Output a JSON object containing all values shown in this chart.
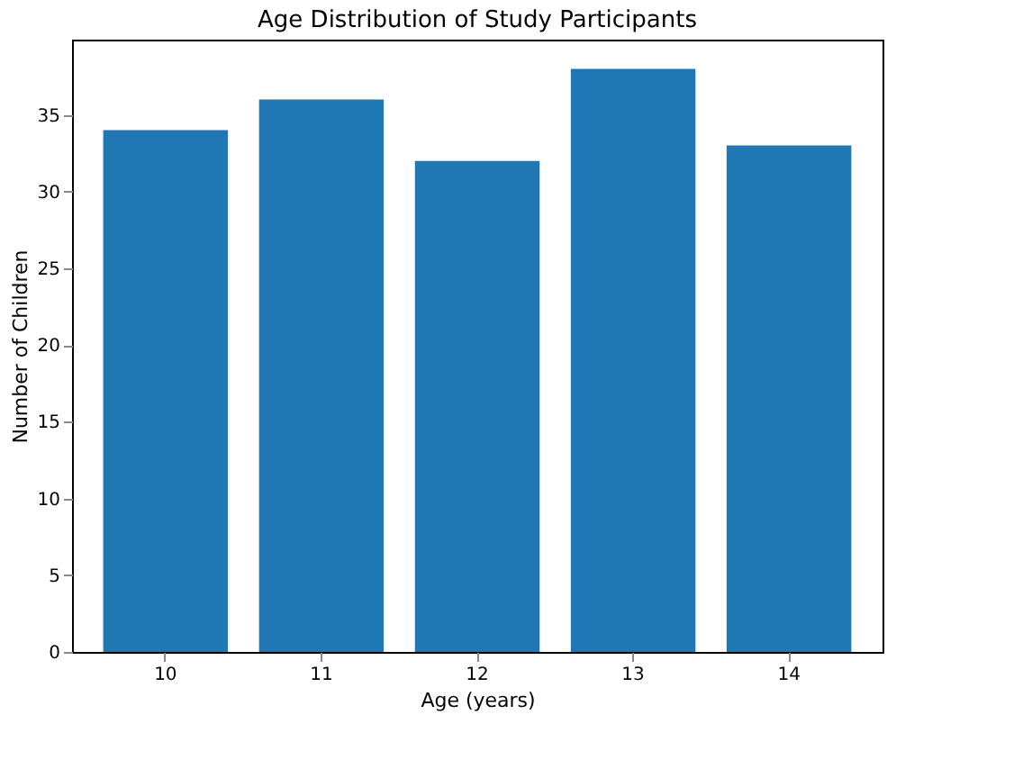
{
  "chart_data": {
    "type": "bar",
    "title": "Age Distribution of Study Participants",
    "xlabel": "Age (years)",
    "ylabel": "Number of Children",
    "categories": [
      "10",
      "11",
      "12",
      "13",
      "14"
    ],
    "values": [
      34,
      36,
      32,
      38,
      33
    ],
    "color": "#1f77b4",
    "ylim": [
      0,
      39.9
    ],
    "yticks": [
      0,
      5,
      10,
      15,
      20,
      25,
      30,
      35
    ],
    "grid": false
  }
}
